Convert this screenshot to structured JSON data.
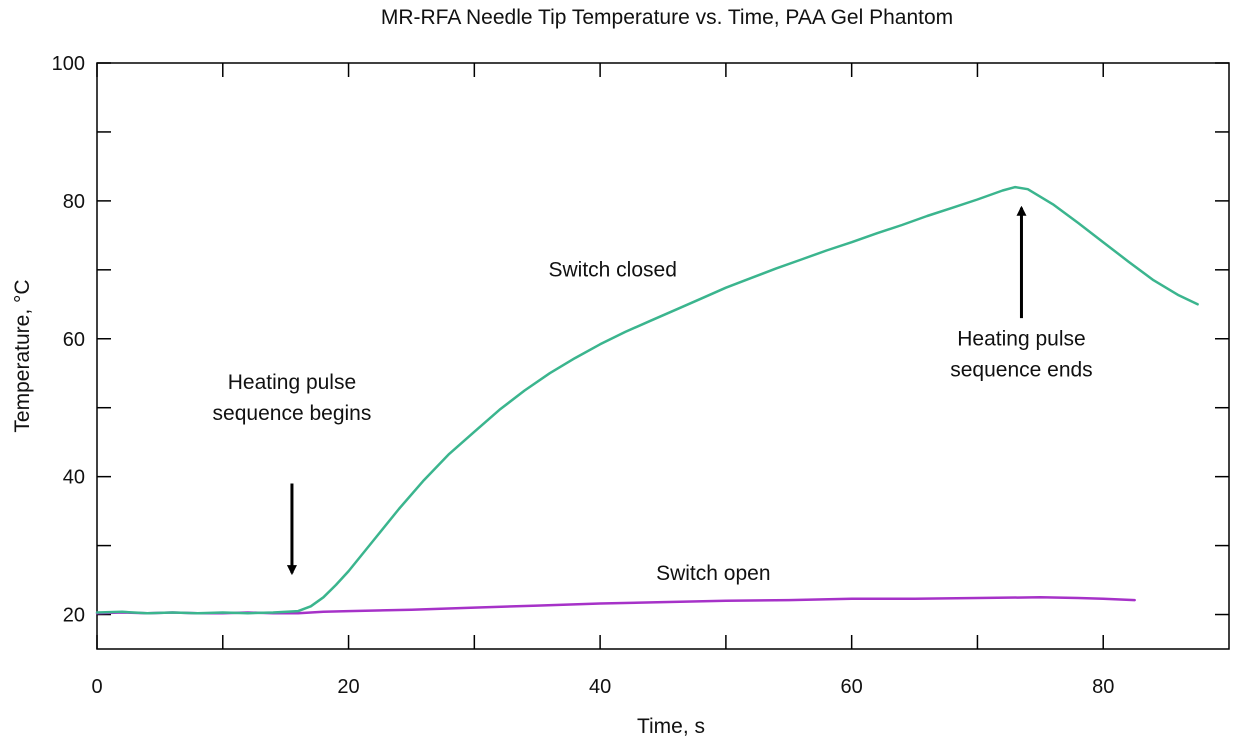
{
  "chart_data": {
    "type": "line",
    "title": "MR-RFA Needle Tip Temperature vs. Time, PAA Gel Phantom",
    "xlabel": "Time, s",
    "ylabel": "Temperature, °C",
    "xlim": [
      0,
      90
    ],
    "ylim": [
      15,
      100
    ],
    "xticks": [
      0,
      20,
      40,
      60,
      80
    ],
    "yticks": [
      20,
      40,
      60,
      80,
      100
    ],
    "minor_xticks": [
      10,
      30,
      50,
      70
    ],
    "minor_yticks": [
      30,
      50,
      70,
      90
    ],
    "grid": false,
    "series": [
      {
        "name": "Switch closed",
        "color": "#3bb58e",
        "x": [
          0,
          2,
          4,
          6,
          8,
          10,
          12,
          14,
          16,
          17,
          18,
          19,
          20,
          22,
          24,
          26,
          28,
          30,
          32,
          34,
          36,
          38,
          40,
          42,
          44,
          46,
          48,
          50,
          52,
          54,
          56,
          58,
          60,
          62,
          64,
          66,
          68,
          70,
          72,
          73,
          74,
          76,
          78,
          80,
          82,
          84,
          86,
          87.5
        ],
        "y": [
          20.3,
          20.4,
          20.2,
          20.3,
          20.2,
          20.3,
          20.2,
          20.3,
          20.5,
          21.2,
          22.5,
          24.3,
          26.3,
          30.8,
          35.3,
          39.5,
          43.3,
          46.5,
          49.7,
          52.5,
          55.0,
          57.2,
          59.2,
          61.0,
          62.6,
          64.2,
          65.8,
          67.4,
          68.8,
          70.2,
          71.5,
          72.8,
          74.0,
          75.3,
          76.5,
          77.8,
          79.0,
          80.2,
          81.5,
          82.0,
          81.7,
          79.5,
          76.8,
          74.0,
          71.2,
          68.5,
          66.3,
          65.0
        ]
      },
      {
        "name": "Switch open",
        "color": "#a632c8",
        "x": [
          0,
          2,
          4,
          6,
          8,
          10,
          12,
          14,
          16,
          18,
          20,
          25,
          30,
          35,
          40,
          45,
          50,
          55,
          60,
          65,
          70,
          75,
          78,
          80,
          82.5
        ],
        "y": [
          20.2,
          20.3,
          20.2,
          20.3,
          20.2,
          20.2,
          20.3,
          20.2,
          20.2,
          20.4,
          20.5,
          20.7,
          21.0,
          21.3,
          21.6,
          21.8,
          22.0,
          22.1,
          22.3,
          22.3,
          22.4,
          22.5,
          22.4,
          22.3,
          22.1
        ]
      }
    ],
    "annotations": [
      {
        "name": "Heating pulse sequence begins",
        "lines": [
          "Heating pulse",
          "sequence begins"
        ],
        "text_x": 15.5,
        "text_y": 52.7,
        "arrow_from": [
          15.5,
          39.0
        ],
        "arrow_to": [
          15.5,
          26.0
        ]
      },
      {
        "name": "Heating pulse sequence ends",
        "lines": [
          "Heating pulse",
          "sequence ends"
        ],
        "text_x": 73.5,
        "text_y": 59.0,
        "arrow_from": [
          73.5,
          63.0
        ],
        "arrow_to": [
          73.5,
          79.0
        ]
      },
      {
        "name": "Switch closed",
        "lines": [
          "Switch closed"
        ],
        "text_x": 41,
        "text_y": 69.0
      },
      {
        "name": "Switch open",
        "lines": [
          "Switch open"
        ],
        "text_x": 49,
        "text_y": 25.0
      }
    ]
  }
}
